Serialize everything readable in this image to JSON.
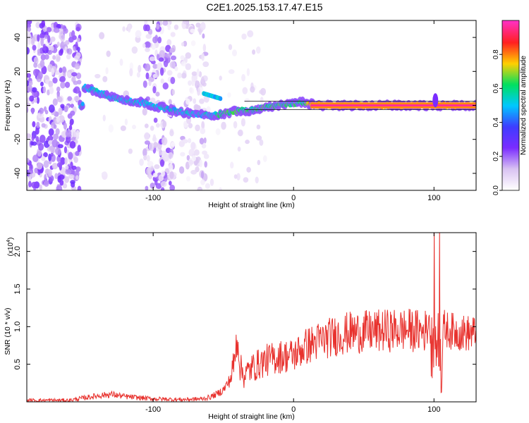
{
  "title": "C2E1.2025.153.17.47.E15",
  "colors": {
    "snr_line": "#e8322e",
    "ridge_outline": "#111111",
    "colormap": [
      "#ffffff",
      "#d9c2f2",
      "#7a2cff",
      "#3e3cff",
      "#00c8ff",
      "#00e060",
      "#ffd000",
      "#ff2020",
      "#ff30c0"
    ]
  },
  "chart_data": [
    {
      "type": "heatmap",
      "xlabel": "Height of straight line (km)",
      "ylabel": "Frequency (Hz)",
      "xlim": [
        -190,
        130
      ],
      "ylim": [
        -50,
        50
      ],
      "xticks": [
        -100,
        0,
        100
      ],
      "yticks": [
        -40,
        -20,
        0,
        20,
        40
      ],
      "colorbar": {
        "label": "Normalized spectral amplitude",
        "range": [
          0,
          1
        ],
        "ticks": [
          "0.0",
          "0.2",
          "0.4",
          "0.6",
          "0.8"
        ],
        "tick_values": [
          0.0,
          0.2,
          0.4,
          0.6,
          0.8
        ]
      },
      "ridge": [
        {
          "x": -150,
          "y": 11
        },
        {
          "x": -140,
          "y": 8
        },
        {
          "x": -130,
          "y": 5
        },
        {
          "x": -120,
          "y": 3
        },
        {
          "x": -110,
          "y": 2
        },
        {
          "x": -100,
          "y": 0
        },
        {
          "x": -90,
          "y": -2
        },
        {
          "x": -80,
          "y": -4
        },
        {
          "x": -70,
          "y": -5
        },
        {
          "x": -60,
          "y": -6
        },
        {
          "x": -50,
          "y": -5
        },
        {
          "x": -40,
          "y": -3
        },
        {
          "x": -30,
          "y": -3
        },
        {
          "x": -20,
          "y": -1
        },
        {
          "x": -10,
          "y": 0
        },
        {
          "x": 0,
          "y": 1
        },
        {
          "x": 5,
          "y": 2
        },
        {
          "x": 10,
          "y": 1
        },
        {
          "x": 20,
          "y": 0
        },
        {
          "x": 40,
          "y": 0
        },
        {
          "x": 60,
          "y": 0
        },
        {
          "x": 80,
          "y": 0
        },
        {
          "x": 100,
          "y": 0
        },
        {
          "x": 130,
          "y": 0
        }
      ]
    },
    {
      "type": "line",
      "xlabel": "Height of straight line (km)",
      "ylabel": "SNR (10 * v/v)",
      "y_multiplier": "(x10",
      "y_multiplier_exp": "4",
      "xlim": [
        -190,
        130
      ],
      "ylim": [
        0,
        2.25
      ],
      "xticks": [
        -100,
        0,
        100
      ],
      "yticks": [
        0.5,
        1.0,
        1.5,
        2.0
      ],
      "ytick_labels": [
        "0.5",
        "1.0",
        "1.5",
        "2.0"
      ],
      "series": [
        {
          "x": [
            -190,
            -160,
            -150,
            -140,
            -130,
            -120,
            -100,
            -80,
            -65,
            -60,
            -55,
            -50,
            -45,
            -42,
            -40,
            -38,
            -35,
            -30,
            -25,
            -20,
            -10,
            0,
            10,
            20,
            30,
            40,
            50,
            60,
            70,
            80,
            90,
            95,
            98,
            100,
            102,
            104,
            105,
            107,
            110,
            120,
            130
          ],
          "y": [
            0.02,
            0.02,
            0.05,
            0.08,
            0.1,
            0.07,
            0.04,
            0.03,
            0.04,
            0.06,
            0.1,
            0.16,
            0.3,
            0.55,
            0.9,
            0.45,
            0.35,
            0.45,
            0.5,
            0.55,
            0.6,
            0.62,
            0.75,
            0.82,
            0.88,
            0.92,
            0.93,
            0.94,
            0.95,
            0.96,
            0.94,
            0.95,
            1.3,
            1.9,
            0.8,
            2.2,
            0.3,
            1.0,
            0.95,
            0.92,
            0.9
          ]
        }
      ]
    }
  ]
}
